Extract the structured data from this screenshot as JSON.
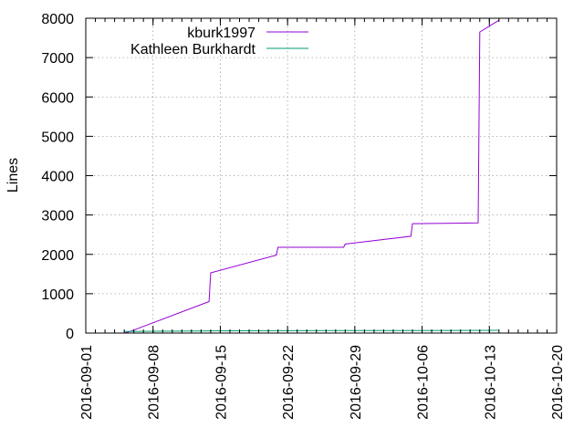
{
  "chart_data": {
    "type": "line",
    "title": "",
    "xlabel": "",
    "ylabel": "Lines",
    "xlim": [
      "2016-09-01",
      "2016-10-20"
    ],
    "ylim": [
      0,
      8000
    ],
    "x_ticks": [
      "2016-09-01",
      "2016-09-08",
      "2016-09-15",
      "2016-09-22",
      "2016-09-29",
      "2016-10-06",
      "2016-10-13",
      "2016-10-20"
    ],
    "y_ticks": [
      0,
      1000,
      2000,
      3000,
      4000,
      5000,
      6000,
      7000,
      8000
    ],
    "grid": true,
    "legend_position": "top-left",
    "series": [
      {
        "name": "kburk1997",
        "color": "#9400d3",
        "points": [
          [
            "2016-09-05T00:00",
            0
          ],
          [
            "2016-09-05T12:00",
            30
          ],
          [
            "2016-09-13T20:00",
            800
          ],
          [
            "2016-09-14T00:00",
            1530
          ],
          [
            "2016-09-20T20:00",
            1980
          ],
          [
            "2016-09-21T00:00",
            2180
          ],
          [
            "2016-09-27T20:00",
            2180
          ],
          [
            "2016-09-28T00:00",
            2260
          ],
          [
            "2016-10-04T20:00",
            2460
          ],
          [
            "2016-10-05T00:00",
            2780
          ],
          [
            "2016-10-11T20:00",
            2800
          ],
          [
            "2016-10-12T00:00",
            7650
          ],
          [
            "2016-10-14T00:00",
            7950
          ]
        ]
      },
      {
        "name": "Kathleen Burkhardt",
        "color": "#009e73",
        "points": [
          [
            "2016-09-05T00:00",
            40
          ],
          [
            "2016-09-14T00:00",
            55
          ],
          [
            "2016-09-21T00:00",
            60
          ],
          [
            "2016-10-05T00:00",
            65
          ],
          [
            "2016-10-14T00:00",
            70
          ]
        ]
      }
    ]
  }
}
